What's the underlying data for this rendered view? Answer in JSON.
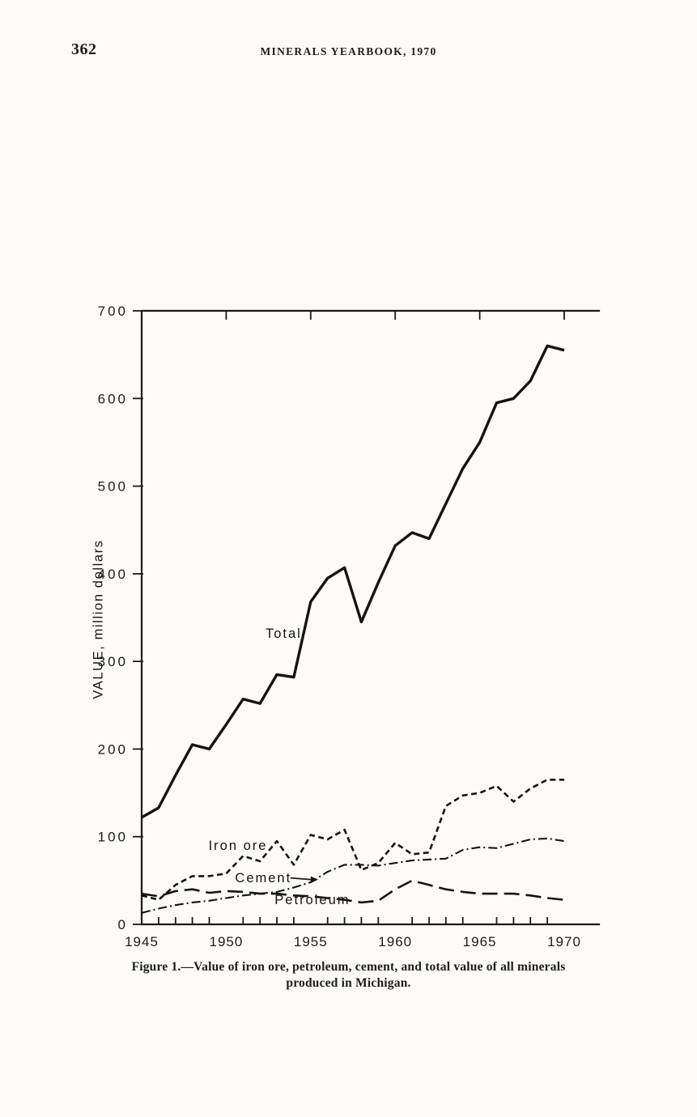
{
  "page": {
    "page_number": "362",
    "header_title": "MINERALS YEARBOOK, 1970"
  },
  "figure": {
    "caption_line1": "Figure 1.—Value of iron ore, petroleum, cement, and total value of all minerals",
    "caption_line2": "produced in Michigan."
  },
  "chart_data": {
    "type": "line",
    "title": "",
    "xlabel": "",
    "ylabel": "VALUE, million dollars",
    "xlim": [
      1945,
      1970
    ],
    "ylim": [
      0,
      700
    ],
    "yticks": [
      0,
      100,
      200,
      300,
      400,
      500,
      600,
      700
    ],
    "xticks": [
      1945,
      1950,
      1955,
      1960,
      1965,
      1970
    ],
    "grid": false,
    "legend_position": "inline-annotations",
    "ink_color": "#141414",
    "x": [
      1945,
      1946,
      1947,
      1948,
      1949,
      1950,
      1951,
      1952,
      1953,
      1954,
      1955,
      1956,
      1957,
      1958,
      1959,
      1960,
      1961,
      1962,
      1963,
      1964,
      1965,
      1966,
      1967,
      1968,
      1969,
      1970
    ],
    "series": [
      {
        "name": "Total",
        "style": "solid",
        "values": [
          122,
          133,
          170,
          205,
          200,
          228,
          257,
          252,
          285,
          282,
          368,
          395,
          407,
          345,
          390,
          432,
          447,
          440,
          480,
          520,
          550,
          595,
          600,
          620,
          660,
          655
        ]
      },
      {
        "name": "Iron ore",
        "style": "short-dash",
        "values": [
          33,
          28,
          45,
          55,
          55,
          58,
          78,
          72,
          95,
          68,
          102,
          97,
          108,
          62,
          70,
          93,
          80,
          82,
          135,
          147,
          150,
          158,
          140,
          155,
          165,
          165
        ]
      },
      {
        "name": "Cement",
        "style": "dash-dot",
        "values": [
          13,
          18,
          22,
          25,
          27,
          30,
          33,
          35,
          37,
          42,
          48,
          60,
          68,
          68,
          67,
          70,
          73,
          74,
          75,
          85,
          88,
          87,
          92,
          97,
          98,
          95
        ]
      },
      {
        "name": "Petroleum",
        "style": "long-dash",
        "values": [
          35,
          32,
          38,
          40,
          36,
          38,
          37,
          35,
          35,
          33,
          32,
          30,
          28,
          25,
          27,
          40,
          50,
          45,
          40,
          37,
          35,
          35,
          35,
          33,
          30,
          28
        ]
      }
    ],
    "annotations": [
      {
        "text": "Total",
        "x": 1953.4,
        "y": 327
      },
      {
        "text": "Iron ore",
        "x": 1950.7,
        "y": 85
      },
      {
        "text": "Cement",
        "x": 1952.2,
        "y": 48,
        "arrow": {
          "x1": 1953.8,
          "y1": 53,
          "x2": 1955.1,
          "y2": 51
        }
      },
      {
        "text": "Petroleum",
        "x": 1955.1,
        "y": 23
      }
    ]
  }
}
